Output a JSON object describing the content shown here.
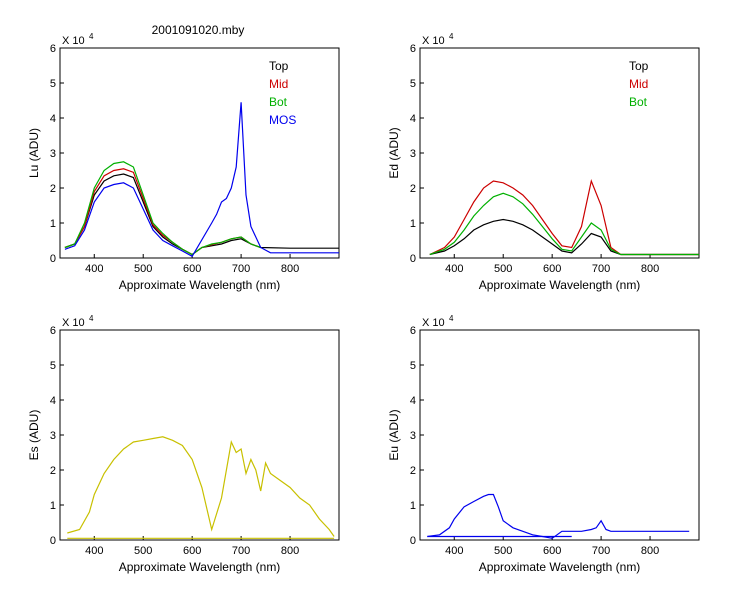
{
  "figure": {
    "title": "2001091020.mby"
  },
  "chart_data": [
    {
      "id": "lu",
      "type": "line",
      "xlabel": "Approximate Wavelength (nm)",
      "ylabel": "Lu (ADU)",
      "ylabel_ascii": "Lu (ADU)",
      "yscale_label": "X 10",
      "yscale_exp": "4",
      "xlim": [
        330,
        900
      ],
      "ylim": [
        0,
        6
      ],
      "xticks": [
        400,
        500,
        600,
        700,
        800
      ],
      "yticks": [
        0,
        1,
        2,
        3,
        4,
        5,
        6
      ],
      "legend_position": "top-right",
      "colors": {
        "Top": "#000000",
        "Mid": "#cc0000",
        "Bot": "#00b000",
        "MOS": "#0000ee"
      },
      "series": [
        {
          "name": "Top",
          "x": [
            340,
            360,
            380,
            400,
            420,
            440,
            460,
            480,
            500,
            520,
            540,
            560,
            580,
            600,
            620,
            640,
            660,
            680,
            700,
            720,
            740,
            800,
            900
          ],
          "y": [
            0.3,
            0.4,
            0.9,
            1.8,
            2.2,
            2.35,
            2.4,
            2.3,
            1.6,
            0.9,
            0.6,
            0.4,
            0.25,
            0.1,
            0.3,
            0.35,
            0.4,
            0.5,
            0.55,
            0.4,
            0.3,
            0.28,
            0.28
          ]
        },
        {
          "name": "Mid",
          "x": [
            340,
            360,
            380,
            400,
            420,
            440,
            460,
            480,
            500,
            520,
            540,
            560,
            580,
            600,
            620,
            640,
            660,
            680,
            700,
            720,
            740
          ],
          "y": [
            0.3,
            0.4,
            0.9,
            1.9,
            2.35,
            2.5,
            2.55,
            2.45,
            1.7,
            0.95,
            0.65,
            0.45,
            0.25,
            0.1,
            0.3,
            0.38,
            0.45,
            0.55,
            0.6,
            0.4,
            0.3
          ]
        },
        {
          "name": "Bot",
          "x": [
            340,
            360,
            380,
            400,
            420,
            440,
            460,
            480,
            500,
            520,
            540,
            560,
            580,
            600,
            620,
            640,
            660,
            680,
            700,
            720,
            740
          ],
          "y": [
            0.3,
            0.4,
            1.0,
            2.0,
            2.5,
            2.7,
            2.75,
            2.6,
            1.8,
            1.0,
            0.7,
            0.45,
            0.25,
            0.1,
            0.3,
            0.4,
            0.45,
            0.55,
            0.6,
            0.4,
            0.3
          ]
        },
        {
          "name": "MOS",
          "x": [
            340,
            360,
            380,
            400,
            420,
            440,
            460,
            480,
            500,
            520,
            540,
            560,
            580,
            600,
            640,
            650,
            660,
            670,
            680,
            690,
            700,
            710,
            720,
            740,
            760,
            800,
            900
          ],
          "y": [
            0.25,
            0.35,
            0.8,
            1.6,
            2.0,
            2.1,
            2.15,
            2.0,
            1.4,
            0.8,
            0.5,
            0.35,
            0.2,
            0.05,
            1.0,
            1.25,
            1.6,
            1.7,
            2.0,
            2.6,
            4.45,
            1.8,
            0.9,
            0.3,
            0.15,
            0.15,
            0.15
          ]
        }
      ]
    },
    {
      "id": "ed",
      "type": "line",
      "xlabel": "Approximate Wavelength (nm)",
      "ylabel": "Ed (ADU)",
      "yscale_label": "X 10",
      "yscale_exp": "4",
      "xlim": [
        330,
        900
      ],
      "ylim": [
        0,
        6
      ],
      "xticks": [
        400,
        500,
        600,
        700,
        800
      ],
      "yticks": [
        0,
        1,
        2,
        3,
        4,
        5,
        6
      ],
      "legend_position": "top-right",
      "colors": {
        "Top": "#000000",
        "Mid": "#cc0000",
        "Bot": "#00b000"
      },
      "series": [
        {
          "name": "Top",
          "x": [
            350,
            380,
            400,
            420,
            440,
            460,
            480,
            500,
            520,
            540,
            560,
            580,
            600,
            620,
            640,
            660,
            680,
            700,
            720,
            740,
            800,
            900
          ],
          "y": [
            0.1,
            0.2,
            0.35,
            0.55,
            0.8,
            0.95,
            1.05,
            1.1,
            1.05,
            0.95,
            0.8,
            0.6,
            0.4,
            0.2,
            0.15,
            0.4,
            0.7,
            0.6,
            0.2,
            0.1,
            0.1,
            0.1
          ]
        },
        {
          "name": "Mid",
          "x": [
            350,
            380,
            400,
            420,
            440,
            460,
            480,
            500,
            520,
            540,
            560,
            580,
            600,
            620,
            640,
            660,
            680,
            700,
            720,
            740,
            800,
            900
          ],
          "y": [
            0.1,
            0.3,
            0.6,
            1.1,
            1.6,
            2.0,
            2.2,
            2.15,
            2.0,
            1.8,
            1.5,
            1.1,
            0.7,
            0.35,
            0.3,
            0.9,
            2.2,
            1.5,
            0.3,
            0.1,
            0.1,
            0.1
          ]
        },
        {
          "name": "Bot",
          "x": [
            350,
            380,
            400,
            420,
            440,
            460,
            480,
            500,
            520,
            540,
            560,
            580,
            600,
            620,
            640,
            660,
            680,
            700,
            720,
            740,
            800,
            900
          ],
          "y": [
            0.1,
            0.25,
            0.45,
            0.8,
            1.2,
            1.5,
            1.75,
            1.85,
            1.75,
            1.55,
            1.25,
            0.9,
            0.55,
            0.25,
            0.2,
            0.6,
            1.0,
            0.8,
            0.25,
            0.1,
            0.1,
            0.1
          ]
        }
      ]
    },
    {
      "id": "es",
      "type": "line",
      "xlabel": "Approximate Wavelength (nm)",
      "ylabel": "Es (ADU)",
      "yscale_label": "X 10",
      "yscale_exp": "4",
      "xlim": [
        330,
        900
      ],
      "ylim": [
        0,
        6
      ],
      "xticks": [
        400,
        500,
        600,
        700,
        800
      ],
      "yticks": [
        0,
        1,
        2,
        3,
        4,
        5,
        6
      ],
      "colors": {
        "Es": "#c8c000"
      },
      "series": [
        {
          "x": [
            345,
            370,
            390,
            400,
            420,
            440,
            460,
            480,
            500,
            520,
            540,
            560,
            580,
            600,
            620,
            640,
            660,
            680,
            690,
            700,
            710,
            720,
            730,
            740,
            750,
            760,
            780,
            800,
            820,
            840,
            860,
            880,
            890
          ],
          "y": [
            0.2,
            0.3,
            0.8,
            1.3,
            1.9,
            2.3,
            2.6,
            2.8,
            2.85,
            2.9,
            2.95,
            2.85,
            2.7,
            2.3,
            1.5,
            0.3,
            1.2,
            2.8,
            2.5,
            2.6,
            1.9,
            2.3,
            2.0,
            1.4,
            2.2,
            1.9,
            1.7,
            1.5,
            1.2,
            1.0,
            0.6,
            0.3,
            0.1
          ]
        },
        {
          "x": [
            345,
            890
          ],
          "y": [
            0.05,
            0.05
          ]
        }
      ]
    },
    {
      "id": "eu",
      "type": "line",
      "xlabel": "Approximate Wavelength (nm)",
      "ylabel": "Eu (ADU)",
      "yscale_label": "X 10",
      "yscale_exp": "4",
      "xlim": [
        330,
        900
      ],
      "ylim": [
        0,
        6
      ],
      "xticks": [
        400,
        500,
        600,
        700,
        800
      ],
      "yticks": [
        0,
        1,
        2,
        3,
        4,
        5,
        6
      ],
      "colors": {
        "Eu": "#0000ee"
      },
      "series": [
        {
          "x": [
            345,
            370,
            390,
            400,
            420,
            440,
            460,
            470,
            480,
            490,
            500,
            520,
            540,
            560,
            580,
            600,
            620,
            640,
            660,
            680,
            690,
            700,
            710,
            720,
            740,
            800,
            880
          ],
          "y": [
            0.1,
            0.15,
            0.35,
            0.6,
            0.95,
            1.1,
            1.25,
            1.3,
            1.3,
            0.95,
            0.55,
            0.35,
            0.25,
            0.15,
            0.1,
            0.05,
            0.25,
            0.25,
            0.25,
            0.3,
            0.35,
            0.55,
            0.3,
            0.25,
            0.25,
            0.25,
            0.25
          ]
        },
        {
          "x": [
            345,
            640
          ],
          "y": [
            0.1,
            0.1
          ]
        }
      ]
    }
  ]
}
